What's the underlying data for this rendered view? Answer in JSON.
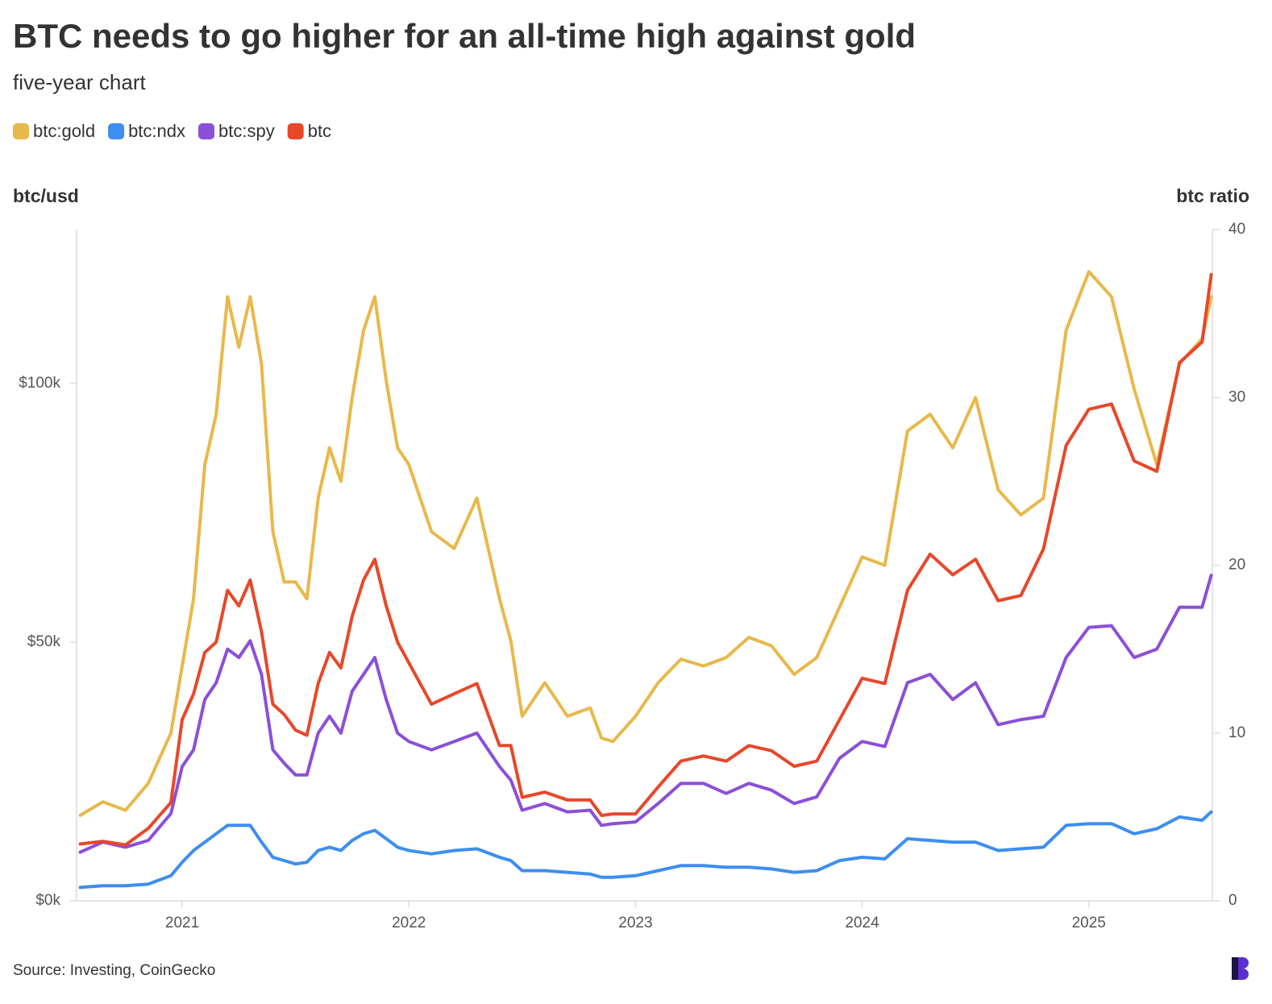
{
  "chart_data": {
    "type": "line",
    "title": "BTC needs to go higher for an all-time high against gold",
    "subtitle": "five-year chart",
    "y_label": "btc/usd",
    "y2_label": "btc ratio",
    "source": "Source: Investing, CoinGecko",
    "x": [
      2020.55,
      2020.65,
      2020.75,
      2020.85,
      2020.95,
      2021.0,
      2021.05,
      2021.1,
      2021.15,
      2021.2,
      2021.25,
      2021.3,
      2021.35,
      2021.4,
      2021.45,
      2021.5,
      2021.55,
      2021.6,
      2021.65,
      2021.7,
      2021.75,
      2021.8,
      2021.85,
      2021.9,
      2021.95,
      2022.0,
      2022.1,
      2022.2,
      2022.3,
      2022.4,
      2022.45,
      2022.5,
      2022.6,
      2022.7,
      2022.8,
      2022.85,
      2022.9,
      2023.0,
      2023.1,
      2023.2,
      2023.3,
      2023.4,
      2023.5,
      2023.6,
      2023.7,
      2023.8,
      2023.9,
      2024.0,
      2024.1,
      2024.2,
      2024.3,
      2024.4,
      2024.5,
      2024.6,
      2024.7,
      2024.8,
      2024.9,
      2025.0,
      2025.1,
      2025.2,
      2025.3,
      2025.4,
      2025.5,
      2025.54
    ],
    "series": [
      {
        "name": "btc:gold",
        "color": "#e8b84a",
        "axis": "y2",
        "values": [
          5.1,
          5.9,
          5.4,
          7.0,
          10.0,
          14,
          18,
          26,
          29,
          36,
          33,
          36,
          32,
          22,
          19,
          19,
          18,
          24,
          27,
          25,
          30,
          34,
          36,
          31,
          27,
          26,
          22,
          21,
          24,
          18,
          15.5,
          11,
          13,
          11,
          11.5,
          9.7,
          9.5,
          11,
          13,
          14.4,
          14,
          14.5,
          15.7,
          15.2,
          13.5,
          14.5,
          17.5,
          20.5,
          20,
          28,
          29,
          27,
          30,
          24.5,
          23,
          24,
          34,
          37.5,
          36,
          30.5,
          26,
          32,
          33.5,
          36
        ]
      },
      {
        "name": "btc:ndx",
        "color": "#3d8ef0",
        "axis": "y2",
        "values": [
          0.8,
          0.9,
          0.9,
          1.0,
          1.5,
          2.3,
          3.0,
          3.5,
          4.0,
          4.5,
          4.5,
          4.5,
          3.5,
          2.6,
          2.4,
          2.2,
          2.3,
          3.0,
          3.2,
          3.0,
          3.6,
          4.0,
          4.2,
          3.7,
          3.2,
          3.0,
          2.8,
          3.0,
          3.1,
          2.6,
          2.4,
          1.8,
          1.8,
          1.7,
          1.6,
          1.4,
          1.4,
          1.5,
          1.8,
          2.1,
          2.1,
          2.0,
          2.0,
          1.9,
          1.7,
          1.8,
          2.4,
          2.6,
          2.5,
          3.7,
          3.6,
          3.5,
          3.5,
          3.0,
          3.1,
          3.2,
          4.5,
          4.6,
          4.6,
          4.0,
          4.3,
          5.0,
          4.8,
          5.3
        ]
      },
      {
        "name": "btc:spy",
        "color": "#8b4fd8",
        "axis": "y2",
        "values": [
          2.9,
          3.5,
          3.2,
          3.6,
          5.2,
          8,
          9,
          12,
          13,
          15,
          14.5,
          15.5,
          13.5,
          9,
          8.2,
          7.5,
          7.5,
          10,
          11,
          10,
          12.5,
          13.5,
          14.5,
          12,
          10,
          9.5,
          9,
          9.5,
          10,
          8,
          7.2,
          5.4,
          5.8,
          5.3,
          5.4,
          4.5,
          4.6,
          4.7,
          5.8,
          7.0,
          7.0,
          6.4,
          7.0,
          6.6,
          5.8,
          6.2,
          8.5,
          9.5,
          9.2,
          13,
          13.5,
          12,
          13,
          10.5,
          10.8,
          11,
          14.5,
          16.3,
          16.4,
          14.5,
          15,
          17.5,
          17.5,
          19.4
        ]
      },
      {
        "name": "btc",
        "color": "#e8472a",
        "values": [
          11000,
          11500,
          10800,
          14000,
          19000,
          35000,
          40000,
          48000,
          50000,
          60000,
          57000,
          62000,
          52000,
          38000,
          36000,
          33000,
          32000,
          42000,
          48000,
          45000,
          55000,
          62000,
          66000,
          57000,
          50000,
          46000,
          38000,
          40000,
          42000,
          30000,
          30000,
          20000,
          21000,
          19500,
          19500,
          16500,
          16800,
          16800,
          22000,
          27000,
          28000,
          27000,
          30000,
          29000,
          26000,
          27000,
          35000,
          43000,
          42000,
          60000,
          67000,
          63000,
          66000,
          58000,
          59000,
          68000,
          88000,
          95000,
          96000,
          85000,
          83000,
          104000,
          108000,
          121000
        ]
      }
    ],
    "xlim": [
      2020.534,
      2025.545
    ],
    "xticks": [
      2021,
      2022,
      2023,
      2024,
      2025
    ],
    "ylim": [
      0,
      129700
    ],
    "yticks": [
      {
        "value": 0,
        "label": "$0k"
      },
      {
        "value": 50000,
        "label": "$50k"
      },
      {
        "value": 100000,
        "label": "$100k"
      }
    ],
    "y2lim": [
      0,
      40
    ],
    "y2ticks": [
      0,
      10,
      20,
      30,
      40
    ],
    "legend": "top-left"
  }
}
